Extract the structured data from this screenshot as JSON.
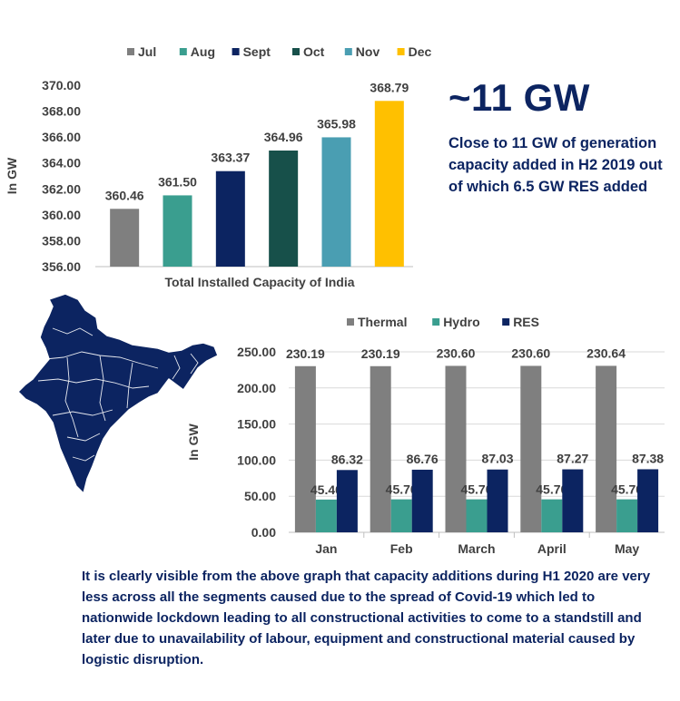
{
  "chart_data": [
    {
      "type": "bar",
      "title": "",
      "xlabel": "Total Installed Capacity of India",
      "ylabel": "In GW",
      "ylim": [
        356,
        370
      ],
      "yticks": [
        "356.00",
        "358.00",
        "360.00",
        "362.00",
        "364.00",
        "366.00",
        "368.00",
        "370.00"
      ],
      "grid": false,
      "legend": "top",
      "series": [
        {
          "name": "Jul",
          "value": 360.46,
          "label": "360.46",
          "color": "#7f7f7f"
        },
        {
          "name": "Aug",
          "value": 361.5,
          "label": "361.50",
          "color": "#3a9e8f"
        },
        {
          "name": "Sept",
          "value": 363.37,
          "label": "363.37",
          "color": "#0c2461"
        },
        {
          "name": "Oct",
          "value": 364.96,
          "label": "364.96",
          "color": "#17504a"
        },
        {
          "name": "Nov",
          "value": 365.98,
          "label": "365.98",
          "color": "#4a9eb2"
        },
        {
          "name": "Dec",
          "value": 368.79,
          "label": "368.79",
          "color": "#ffc000"
        }
      ]
    },
    {
      "type": "bar",
      "title": "",
      "xlabel": "",
      "ylabel": "In GW",
      "ylim": [
        0,
        250
      ],
      "yticks": [
        "0.00",
        "50.00",
        "100.00",
        "150.00",
        "200.00",
        "250.00"
      ],
      "grid": true,
      "legend": "top",
      "categories": [
        "Jan",
        "Feb",
        "March",
        "April",
        "May"
      ],
      "series": [
        {
          "name": "Thermal",
          "color": "#7f7f7f",
          "values": [
            230.19,
            230.19,
            230.6,
            230.6,
            230.64
          ],
          "labels": [
            "230.19",
            "230.19",
            "230.60",
            "230.60",
            "230.64"
          ]
        },
        {
          "name": "Hydro",
          "color": "#3a9e8f",
          "values": [
            45.4,
            45.7,
            45.7,
            45.7,
            45.7
          ],
          "labels": [
            "45.40",
            "45.70",
            "45.70",
            "45.70",
            "45.70"
          ]
        },
        {
          "name": "RES",
          "color": "#0c2461",
          "values": [
            86.32,
            86.76,
            87.03,
            87.27,
            87.38
          ],
          "labels": [
            "86.32",
            "86.76",
            "87.03",
            "87.27",
            "87.38"
          ]
        }
      ]
    }
  ],
  "headline": "~11 GW",
  "subtext": "Close to 11 GW of generation capacity added in H2 2019 out of which 6.5 GW RES added",
  "footer": "It is clearly visible from the above graph that capacity additions during H1 2020 are very less across all the segments caused due to the spread of Covid-19 which led to nationwide lockdown leading to all constructional activities to come to a standstill and later due to unavailability of labour, equipment and constructional material caused by logistic disruption.",
  "map_icon": "india-map-icon"
}
